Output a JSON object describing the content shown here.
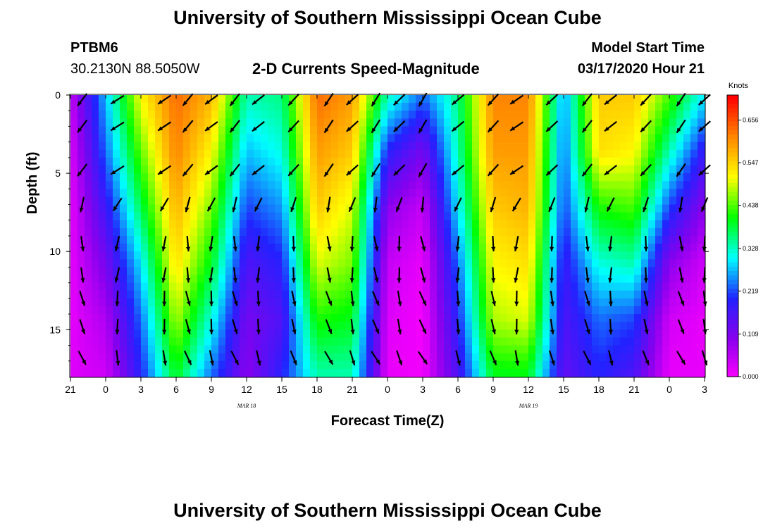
{
  "page": {
    "top_title": "University of Southern Mississippi Ocean Cube",
    "bottom_title": "University of Southern Mississippi Ocean Cube",
    "station": "PTBM6",
    "location": "30.2130N 88.5050W",
    "plot_title": "2-D Currents Speed-Magnitude",
    "model_start_label": "Model Start Time",
    "model_start_value": "03/17/2020 Hour 21"
  },
  "chart_data": {
    "type": "heatmap",
    "title": "2-D Currents Speed-Magnitude",
    "xlabel": "Forecast Time(Z)",
    "ylabel": "Depth (ft)",
    "x_tick_labels": [
      "21",
      "0",
      "3",
      "6",
      "9",
      "12",
      "15",
      "18",
      "21",
      "0",
      "3",
      "6",
      "9",
      "12",
      "15",
      "18",
      "21",
      "0",
      "3"
    ],
    "x_tick_hours": [
      0,
      3,
      6,
      9,
      12,
      15,
      18,
      21,
      24,
      27,
      30,
      33,
      36,
      39,
      42,
      45,
      48,
      51,
      54
    ],
    "x_range_hours": [
      0,
      54
    ],
    "date_labels": [
      {
        "label": "MAR 18",
        "hour": 15
      },
      {
        "label": "MAR 19",
        "hour": 39
      }
    ],
    "y_tick_labels": [
      "0",
      "5",
      "10",
      "15"
    ],
    "y_ticks": [
      0,
      5,
      10,
      15
    ],
    "y_range": [
      0,
      18
    ],
    "y_reversed": true,
    "colorbar": {
      "label": "Knots",
      "tick_labels": [
        "0.000",
        "0.109",
        "0.219",
        "0.328",
        "0.438",
        "0.547",
        "0.656"
      ],
      "tick_values": [
        0.0,
        0.109,
        0.219,
        0.328,
        0.438,
        0.547,
        0.656
      ],
      "range": [
        0,
        0.72
      ],
      "colors": [
        "#ff00ff",
        "#8800ee",
        "#2222ff",
        "#00ffff",
        "#00ff00",
        "#ffff00",
        "#ff8800",
        "#ff0000"
      ]
    },
    "speed_knots": [
      [
        0.05,
        0.03,
        0.02,
        0.02,
        0.02,
        0.03
      ],
      [
        0.28,
        0.24,
        0.18,
        0.12,
        0.07,
        0.04
      ],
      [
        0.52,
        0.45,
        0.38,
        0.3,
        0.24,
        0.2
      ],
      [
        0.64,
        0.62,
        0.58,
        0.54,
        0.48,
        0.4
      ],
      [
        0.58,
        0.52,
        0.46,
        0.4,
        0.32,
        0.24
      ],
      [
        0.34,
        0.28,
        0.22,
        0.16,
        0.12,
        0.1
      ],
      [
        0.36,
        0.32,
        0.26,
        0.2,
        0.16,
        0.2
      ],
      [
        0.64,
        0.6,
        0.56,
        0.5,
        0.42,
        0.34
      ],
      [
        0.6,
        0.56,
        0.5,
        0.46,
        0.4,
        0.34
      ],
      [
        0.34,
        0.2,
        0.1,
        0.05,
        0.03,
        0.02
      ],
      [
        0.24,
        0.12,
        0.05,
        0.02,
        0.01,
        0.01
      ],
      [
        0.36,
        0.34,
        0.3,
        0.24,
        0.2,
        0.16
      ],
      [
        0.62,
        0.6,
        0.56,
        0.52,
        0.48,
        0.4
      ],
      [
        0.62,
        0.6,
        0.58,
        0.54,
        0.5,
        0.4
      ],
      [
        0.26,
        0.24,
        0.22,
        0.18,
        0.16,
        0.14
      ],
      [
        0.56,
        0.54,
        0.42,
        0.32,
        0.24,
        0.2
      ],
      [
        0.56,
        0.52,
        0.44,
        0.34,
        0.22,
        0.16
      ],
      [
        0.44,
        0.34,
        0.22,
        0.1,
        0.04,
        0.02
      ],
      [
        0.3,
        0.18,
        0.1,
        0.04,
        0.02,
        0.02
      ]
    ],
    "arrow_direction_deg": [
      225,
      225,
      200,
      180,
      170,
      160
    ],
    "arrow_columns_hours": [
      1,
      4,
      8,
      10,
      12,
      14,
      16,
      19,
      22,
      24,
      26,
      28,
      30,
      33,
      36,
      38,
      41,
      44,
      46,
      49,
      52,
      54
    ]
  }
}
